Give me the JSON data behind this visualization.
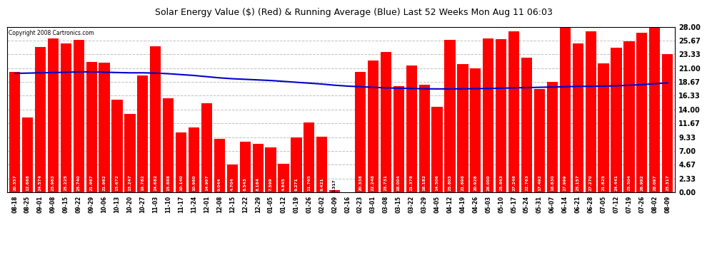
{
  "title": "Solar Energy Value ($) (Red) & Running Average (Blue) Last 52 Weeks Mon Aug 11 06:03",
  "copyright": "Copyright 2008 Cartronics.com",
  "bar_color": "#ff0000",
  "avg_color": "#0000cc",
  "background_color": "#ffffff",
  "plot_bg_color": "#ffffff",
  "grid_color": "#c0c0c0",
  "text_color": "#000000",
  "ylim": [
    0,
    28.0
  ],
  "yticks": [
    0.0,
    2.33,
    4.67,
    7.0,
    9.33,
    11.67,
    14.0,
    16.33,
    18.67,
    21.0,
    23.33,
    25.67,
    28.0
  ],
  "labels": [
    "08-18",
    "08-25",
    "09-01",
    "09-08",
    "09-15",
    "09-22",
    "09-29",
    "10-06",
    "10-13",
    "10-20",
    "10-27",
    "11-03",
    "11-10",
    "11-17",
    "11-24",
    "12-01",
    "12-08",
    "12-15",
    "12-22",
    "12-29",
    "01-05",
    "01-12",
    "01-19",
    "01-26",
    "02-02",
    "02-09",
    "02-16",
    "02-23",
    "03-01",
    "03-08",
    "03-15",
    "03-22",
    "03-29",
    "04-05",
    "04-12",
    "04-19",
    "04-26",
    "05-03",
    "05-10",
    "05-17",
    "05-24",
    "05-31",
    "06-07",
    "06-14",
    "06-21",
    "06-28",
    "07-05",
    "07-12",
    "07-19",
    "07-26",
    "08-02",
    "08-09"
  ],
  "values": [
    20.357,
    12.668,
    24.574,
    25.963,
    25.225,
    25.74,
    21.987,
    21.962,
    15.672,
    13.247,
    19.782,
    24.682,
    15.888,
    10.14,
    10.96,
    14.997,
    9.044,
    4.704,
    8.543,
    8.164,
    7.599,
    4.845,
    9.271,
    11.765,
    9.421,
    0.317,
    0.0,
    20.338,
    22.248,
    23.731,
    18.004,
    21.378,
    18.182,
    14.506,
    25.803,
    21.698,
    20.928,
    26.0,
    25.863,
    27.246,
    22.763,
    17.492,
    18.63,
    27.999,
    25.157,
    27.27,
    21.825,
    24.441,
    25.504,
    26.992,
    28.097,
    23.317
  ],
  "running_avg": [
    20.1,
    20.15,
    20.2,
    20.25,
    20.3,
    20.35,
    20.35,
    20.3,
    20.25,
    20.2,
    20.2,
    20.15,
    20.05,
    19.9,
    19.75,
    19.55,
    19.35,
    19.2,
    19.1,
    19.0,
    18.9,
    18.75,
    18.6,
    18.45,
    18.3,
    18.1,
    17.95,
    17.85,
    17.75,
    17.65,
    17.6,
    17.55,
    17.5,
    17.48,
    17.48,
    17.5,
    17.52,
    17.55,
    17.6,
    17.65,
    17.7,
    17.75,
    17.8,
    17.85,
    17.9,
    17.92,
    17.95,
    18.0,
    18.1,
    18.2,
    18.35,
    18.5
  ]
}
